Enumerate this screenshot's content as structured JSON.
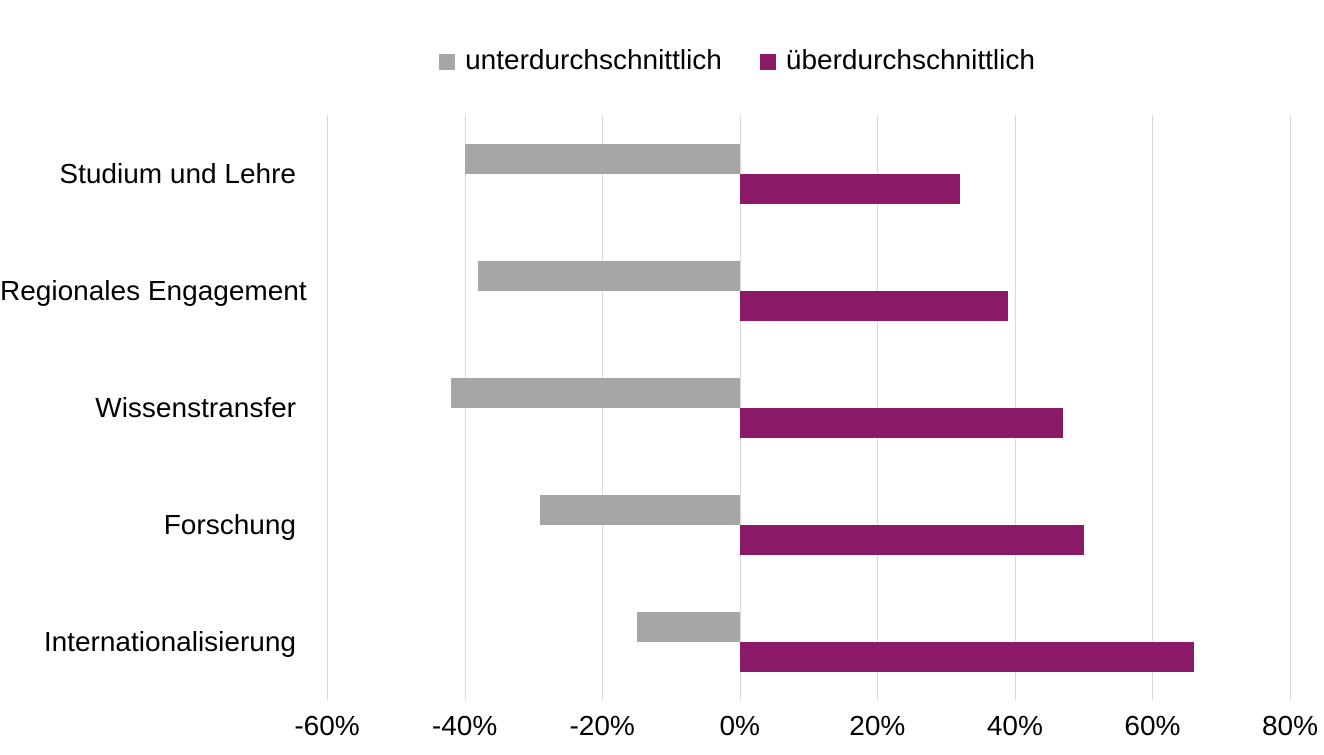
{
  "chart_data": {
    "type": "bar",
    "orientation": "horizontal",
    "title": "",
    "categories": [
      "Studium und Lehre",
      "Regionales Engagement",
      "Wissenstransfer",
      "Forschung",
      "Internationalisierung"
    ],
    "series": [
      {
        "name": "unterdurchschnittlich",
        "color": "#A6A6A6",
        "values": [
          -40,
          -38,
          -42,
          -29,
          -15
        ]
      },
      {
        "name": "überdurchschnittlich",
        "color": "#8A1A67",
        "values": [
          32,
          39,
          47,
          50,
          66
        ]
      }
    ],
    "xlim": [
      -60,
      80
    ],
    "xticks": [
      -60,
      -40,
      -20,
      0,
      20,
      40,
      60,
      80
    ],
    "xtick_labels": [
      "-60%",
      "-40%",
      "-20%",
      "0%",
      "20%",
      "40%",
      "60%",
      "80%"
    ],
    "xlabel": "",
    "ylabel": "",
    "grid": "vertical",
    "gridline_color": "#D9D9D9",
    "legend_position": "top",
    "background": "#FFFFFF",
    "text_color": "#000000"
  }
}
